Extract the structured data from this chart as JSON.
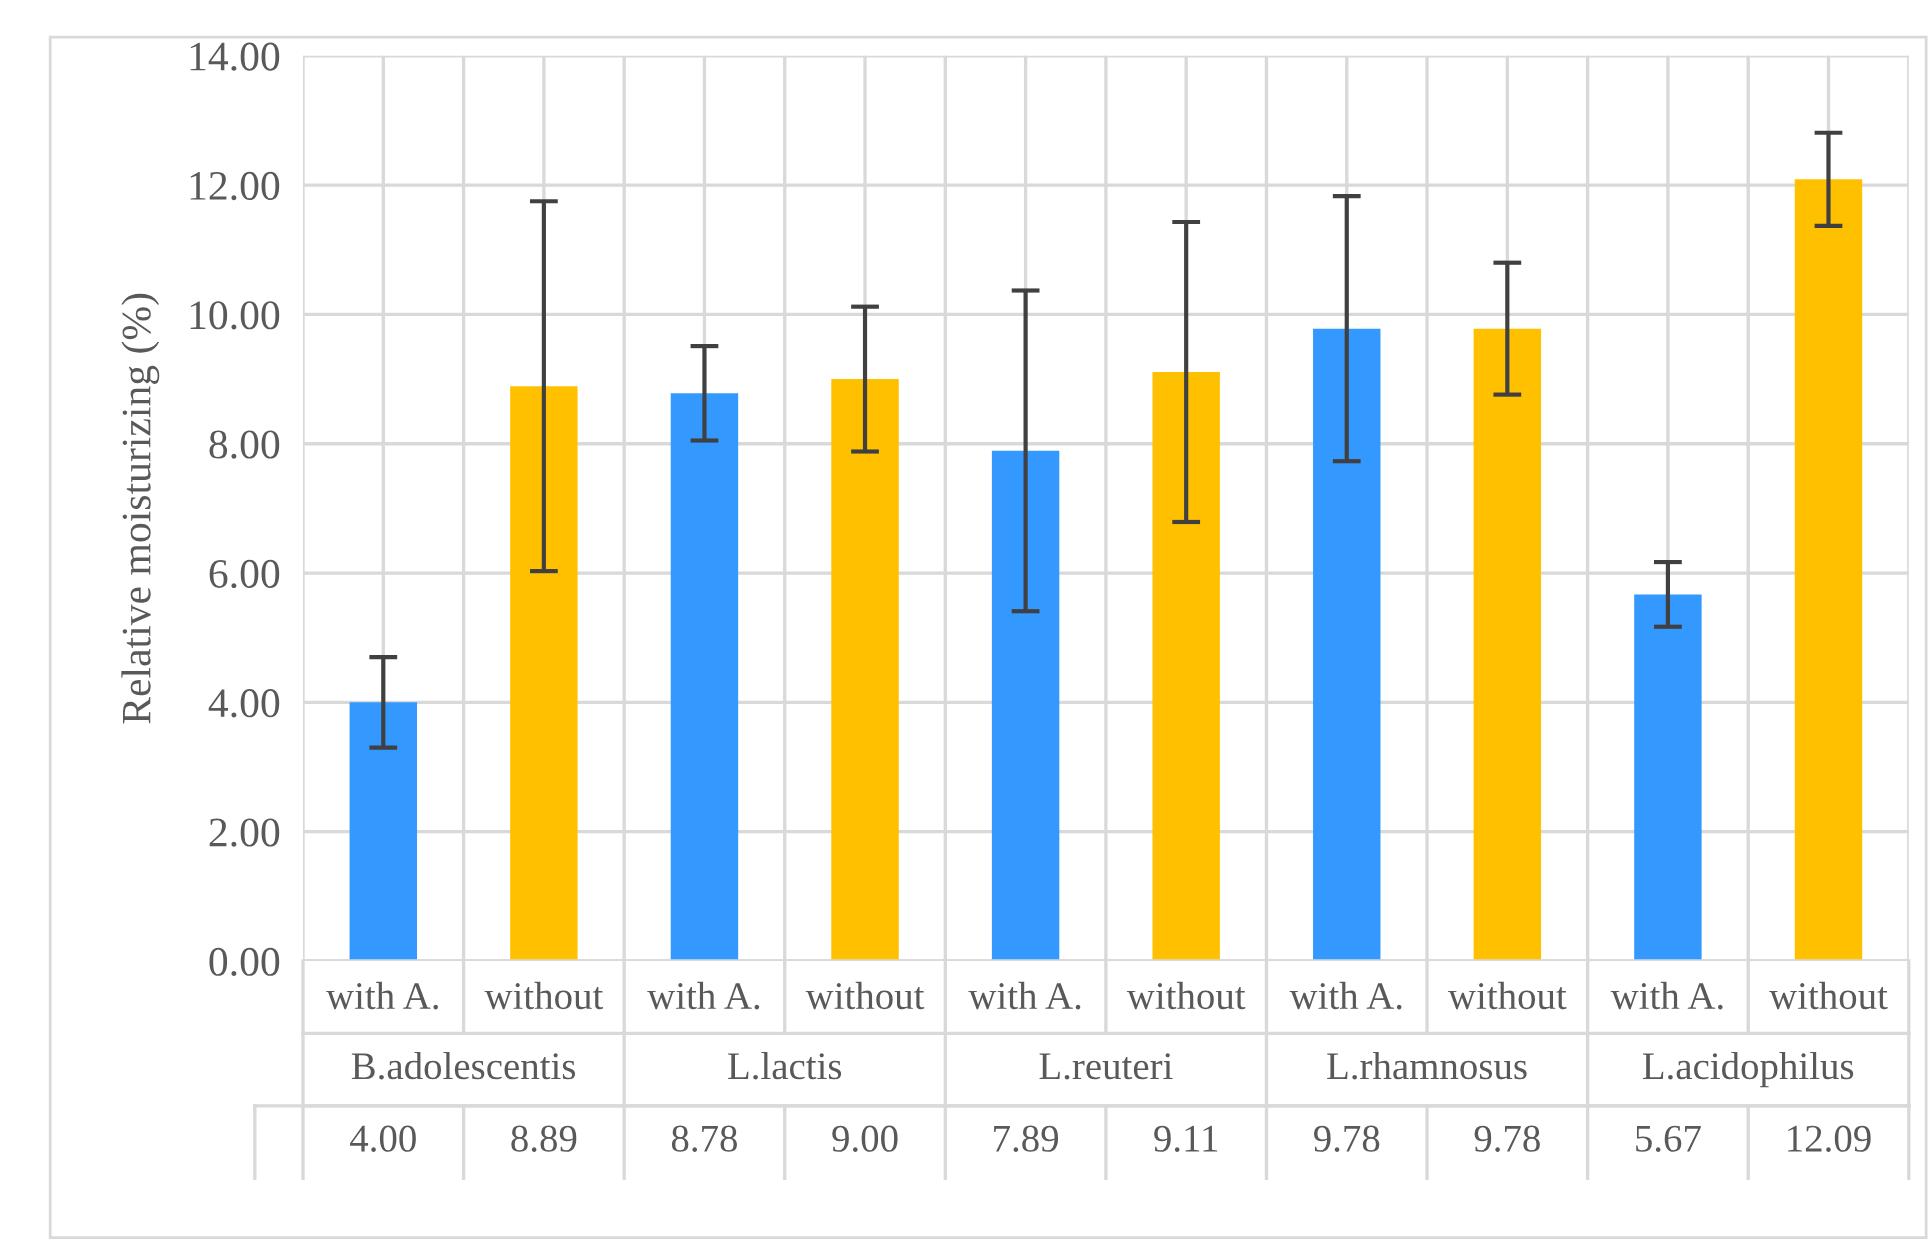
{
  "chart_data": {
    "type": "bar",
    "ylabel": "Relative moisturizing (%)",
    "categories": [
      "with A.",
      "without",
      "with A.",
      "without",
      "with A.",
      "without",
      "with A.",
      "without",
      "with A.",
      "without"
    ],
    "annotations": [
      "B.adolescentis",
      "L.lactis",
      "L.reuteri",
      "L.rhamnosus",
      "L.acidophilus"
    ],
    "values": [
      4.0,
      8.89,
      8.78,
      9.0,
      7.89,
      9.11,
      9.78,
      9.78,
      5.67,
      12.09
    ],
    "value_labels": [
      "4.00",
      "8.89",
      "8.78",
      "9.00",
      "7.89",
      "9.11",
      "9.78",
      "9.78",
      "5.67",
      "12.09"
    ],
    "errors": [
      0.7,
      2.86,
      0.73,
      1.12,
      2.48,
      2.32,
      2.05,
      1.02,
      0.5,
      0.72
    ],
    "colors": [
      "#3399ff",
      "#ffc000",
      "#3399ff",
      "#ffc000",
      "#3399ff",
      "#ffc000",
      "#3399ff",
      "#ffc000",
      "#3399ff",
      "#ffc000"
    ],
    "ylim": [
      0,
      14
    ],
    "yticks": [
      {
        "value": 0,
        "label": "0.00"
      },
      {
        "value": 2,
        "label": "2.00"
      },
      {
        "value": 4,
        "label": "4.00"
      },
      {
        "value": 6,
        "label": "6.00"
      },
      {
        "value": 8,
        "label": "8.00"
      },
      {
        "value": 10,
        "label": "10.00"
      },
      {
        "value": 12,
        "label": "12.00"
      },
      {
        "value": 14,
        "label": "14.00"
      }
    ],
    "grid": true
  }
}
